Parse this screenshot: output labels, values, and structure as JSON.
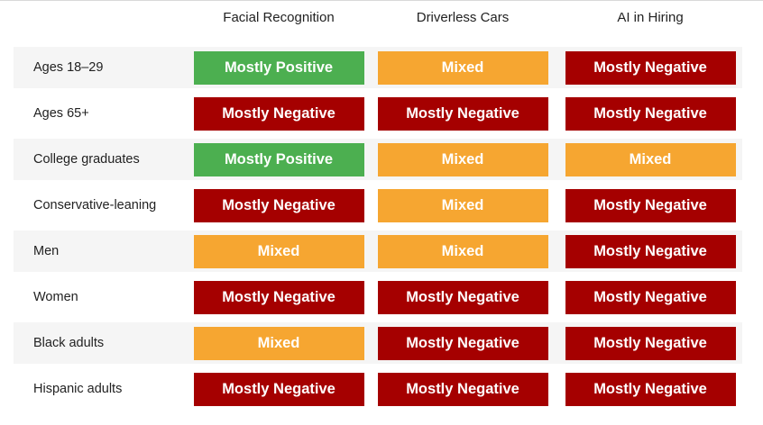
{
  "chart_data": {
    "type": "table",
    "columns": [
      "Facial Recognition",
      "Driverless Cars",
      "AI in Hiring"
    ],
    "rows": [
      {
        "label": "Ages 18–29",
        "values": [
          "Mostly Positive",
          "Mixed",
          "Mostly Negative"
        ]
      },
      {
        "label": "Ages 65+",
        "values": [
          "Mostly Negative",
          "Mostly Negative",
          "Mostly Negative"
        ]
      },
      {
        "label": "College graduates",
        "values": [
          "Mostly Positive",
          "Mixed",
          "Mixed"
        ]
      },
      {
        "label": "Conservative-leaning",
        "values": [
          "Mostly Negative",
          "Mixed",
          "Mostly Negative"
        ]
      },
      {
        "label": "Men",
        "values": [
          "Mixed",
          "Mixed",
          "Mostly Negative"
        ]
      },
      {
        "label": "Women",
        "values": [
          "Mostly Negative",
          "Mostly Negative",
          "Mostly Negative"
        ]
      },
      {
        "label": "Black adults",
        "values": [
          "Mixed",
          "Mostly Negative",
          "Mostly Negative"
        ]
      },
      {
        "label": "Hispanic adults",
        "values": [
          "Mostly Negative",
          "Mostly Negative",
          "Mostly Negative"
        ]
      }
    ],
    "colors": {
      "Mostly Positive": "#4caf50",
      "Mixed": "#f6a631",
      "Mostly Negative": "#a50000"
    }
  }
}
